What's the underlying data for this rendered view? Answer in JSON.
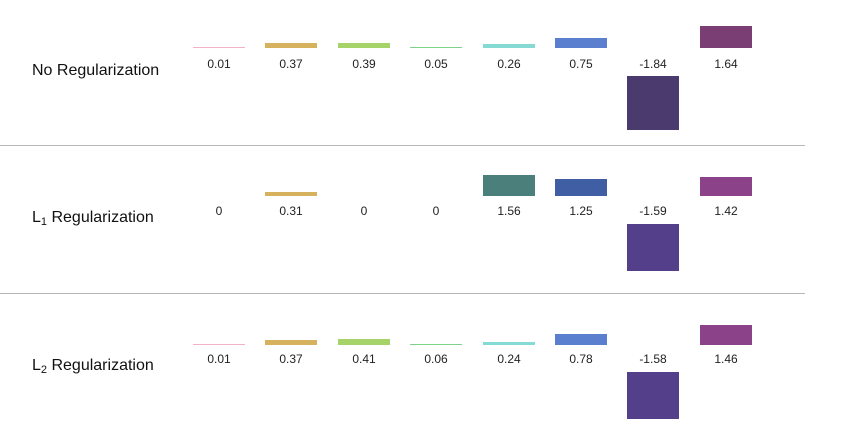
{
  "rows": [
    {
      "label_main": "No Regularization",
      "label_sub": "",
      "label_rest": "",
      "values": [
        0.01,
        0.37,
        0.39,
        0.05,
        0.26,
        0.75,
        -1.84,
        1.64
      ],
      "value_labels": [
        "0.01",
        "0.37",
        "0.39",
        "0.05",
        "0.26",
        "0.75",
        "-1.84",
        "1.64"
      ],
      "colors": [
        "#f2b3c8",
        "#d6b25e",
        "#a6d46a",
        "#7ed38b",
        "#86dad4",
        "#5b7fcf",
        "#4a3a6e",
        "#7b3e74"
      ]
    },
    {
      "label_main": "L",
      "label_sub": "1",
      "label_rest": " Regularization",
      "values": [
        0,
        0.31,
        0,
        0,
        1.56,
        1.25,
        -1.59,
        1.42
      ],
      "value_labels": [
        "0",
        "0.31",
        "0",
        "0",
        "1.56",
        "1.25",
        "-1.59",
        "1.42"
      ],
      "colors": [
        "#f2b3c8",
        "#d6b25e",
        "#a6d46a",
        "#7ed38b",
        "#4b7f7b",
        "#3f5ea3",
        "#543f8a",
        "#8c4289"
      ]
    },
    {
      "label_main": "L",
      "label_sub": "2",
      "label_rest": " Regularization",
      "values": [
        0.01,
        0.37,
        0.41,
        0.06,
        0.24,
        0.78,
        -1.58,
        1.46
      ],
      "value_labels": [
        "0.01",
        "0.37",
        "0.41",
        "0.06",
        "0.24",
        "0.78",
        "-1.58",
        "1.46"
      ],
      "colors": [
        "#f2b3c8",
        "#d6b25e",
        "#a6d46a",
        "#7ed38b",
        "#86dad4",
        "#5b7fcf",
        "#543f8a",
        "#8c4289"
      ]
    }
  ]
}
